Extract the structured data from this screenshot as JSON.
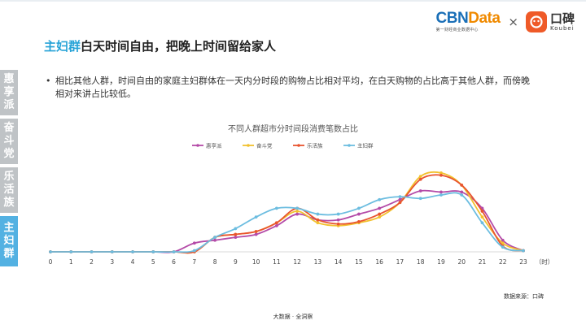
{
  "header": {
    "cbn_part1": "CBN",
    "cbn_part2": "Data",
    "cbn_sub": "第一财经商业数据中心",
    "times": "×",
    "koubei_cn": "口碑",
    "koubei_en": "Koubei"
  },
  "title": {
    "highlight": "主妇群",
    "rest": "白天时间自由，把晚上时间留给家人"
  },
  "sidetabs": [
    {
      "label": "惠享派",
      "active": false
    },
    {
      "label": "奋斗党",
      "active": false
    },
    {
      "label": "乐活族",
      "active": false
    },
    {
      "label": "主妇群",
      "active": true
    }
  ],
  "bullet": "相比其他人群，时间自由的家庭主妇群体在一天内分时段的购物占比相对平均，在白天购物的占比高于其他人群，而傍晚相对来讲占比较低。",
  "chart_data": {
    "type": "line",
    "title": "不同人群超市分时间段消费笔数占比",
    "x": [
      0,
      1,
      2,
      3,
      4,
      5,
      6,
      7,
      8,
      9,
      10,
      11,
      12,
      13,
      14,
      15,
      16,
      17,
      18,
      19,
      20,
      21,
      22,
      23
    ],
    "x_unit": "（时）",
    "ylim": [
      0,
      14
    ],
    "legend_position": "top",
    "series": [
      {
        "name": "惠享派",
        "color": "#b44ba8",
        "values": [
          0,
          0,
          0,
          0,
          0,
          0,
          0,
          1.5,
          2,
          2.5,
          3,
          4.5,
          6.5,
          5.5,
          5.5,
          6.5,
          7.5,
          9,
          10.5,
          10.3,
          10.3,
          7.5,
          2,
          0.2
        ]
      },
      {
        "name": "奋斗党",
        "color": "#f2c12e",
        "values": [
          0,
          0,
          0,
          0,
          0,
          0,
          0,
          0,
          2.5,
          3,
          3.5,
          5,
          7,
          5,
          4.5,
          5,
          6,
          8.5,
          13,
          13.6,
          11.5,
          6,
          1.5,
          0.2
        ]
      },
      {
        "name": "乐活族",
        "color": "#e8542f",
        "values": [
          0,
          0,
          0,
          0,
          0,
          0,
          0,
          0,
          2.5,
          3,
          3.5,
          5,
          7.5,
          5.5,
          4.8,
          5.2,
          6.5,
          8.5,
          12.5,
          13.2,
          11.5,
          7,
          1,
          0.2
        ]
      },
      {
        "name": "主妇群",
        "color": "#6cbde0",
        "values": [
          0,
          0,
          0,
          0,
          0,
          0,
          0,
          0.2,
          2.5,
          4,
          6,
          7.5,
          7.5,
          6.5,
          6.5,
          7.5,
          9,
          9.5,
          9.2,
          9.8,
          9.8,
          5,
          0.8,
          0.2
        ]
      }
    ]
  },
  "source": "数据来源：口碑",
  "footer": "大数据 · 全洞察"
}
